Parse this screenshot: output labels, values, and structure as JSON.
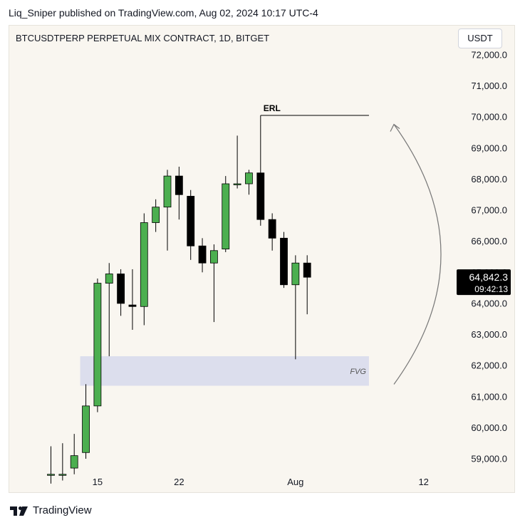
{
  "header": {
    "publish_line": "Liq_Sniper published on TradingView.com, Aug 02, 2024 10:17 UTC-4"
  },
  "symbol_line": "BTCUSDTPERP PERPETUAL MIX CONTRACT, 1D, BITGET",
  "currency_button": "USDT",
  "footer": {
    "brand": "TradingView"
  },
  "colors": {
    "up": "#4caf50",
    "down": "#000000",
    "zone": "#dcdeed",
    "background": "#f9f6f0"
  },
  "chart_data": {
    "type": "candlestick",
    "y_axis": {
      "ticks": [
        "72,000.0",
        "71,000.0",
        "70,000.0",
        "69,000.0",
        "68,000.0",
        "67,000.0",
        "66,000.0",
        "65,000.0",
        "64,000.0",
        "63,000.0",
        "62,000.0",
        "61,000.0",
        "60,000.0",
        "59,000.0"
      ],
      "range": [
        58700,
        72050
      ]
    },
    "x_axis": {
      "ticks": [
        {
          "label": "15",
          "date": "2024-07-15"
        },
        {
          "label": "22",
          "date": "2024-07-22"
        },
        {
          "label": "Aug",
          "date": "2024-08-01"
        },
        {
          "label": "12",
          "date": "2024-08-12"
        }
      ]
    },
    "candles": [
      {
        "date": "2024-07-11",
        "open": 58500,
        "high": 59400,
        "low": 58200,
        "close": 58500
      },
      {
        "date": "2024-07-12",
        "open": 58500,
        "high": 59500,
        "low": 58300,
        "close": 58500
      },
      {
        "date": "2024-07-13",
        "open": 58700,
        "high": 59800,
        "low": 58500,
        "close": 59100
      },
      {
        "date": "2024-07-14",
        "open": 59200,
        "high": 61400,
        "low": 59000,
        "close": 60700
      },
      {
        "date": "2024-07-15",
        "open": 60700,
        "high": 64800,
        "low": 60500,
        "close": 64650
      },
      {
        "date": "2024-07-16",
        "open": 64650,
        "high": 65300,
        "low": 62300,
        "close": 64950
      },
      {
        "date": "2024-07-17",
        "open": 64950,
        "high": 65100,
        "low": 63600,
        "close": 64000
      },
      {
        "date": "2024-07-18",
        "open": 63950,
        "high": 65100,
        "low": 63150,
        "close": 63900
      },
      {
        "date": "2024-07-19",
        "open": 63900,
        "high": 66900,
        "low": 63300,
        "close": 66600
      },
      {
        "date": "2024-07-20",
        "open": 66600,
        "high": 67350,
        "low": 66300,
        "close": 67100
      },
      {
        "date": "2024-07-21",
        "open": 67100,
        "high": 68300,
        "low": 65700,
        "close": 68100
      },
      {
        "date": "2024-07-22",
        "open": 68100,
        "high": 68400,
        "low": 66700,
        "close": 67500
      },
      {
        "date": "2024-07-23",
        "open": 67450,
        "high": 67650,
        "low": 65400,
        "close": 65850
      },
      {
        "date": "2024-07-24",
        "open": 65850,
        "high": 66100,
        "low": 65000,
        "close": 65300
      },
      {
        "date": "2024-07-25",
        "open": 65300,
        "high": 65900,
        "low": 63400,
        "close": 65700
      },
      {
        "date": "2024-07-26",
        "open": 65750,
        "high": 68100,
        "low": 65650,
        "close": 67850
      },
      {
        "date": "2024-07-27",
        "open": 67850,
        "high": 69400,
        "low": 67700,
        "close": 67850
      },
      {
        "date": "2024-07-28",
        "open": 67850,
        "high": 68300,
        "low": 67500,
        "close": 68200
      },
      {
        "date": "2024-07-29",
        "open": 68200,
        "high": 70050,
        "low": 66500,
        "close": 66700
      },
      {
        "date": "2024-07-30",
        "open": 66700,
        "high": 66900,
        "low": 65700,
        "close": 66100
      },
      {
        "date": "2024-07-31",
        "open": 66100,
        "high": 66300,
        "low": 64500,
        "close": 64600
      },
      {
        "date": "2024-08-01",
        "open": 64600,
        "high": 65550,
        "low": 62200,
        "close": 65300
      },
      {
        "date": "2024-08-02",
        "open": 65300,
        "high": 65550,
        "low": 63650,
        "close": 64842.3
      }
    ],
    "price_label": {
      "value": "64,842.3",
      "countdown": "09:42:13"
    },
    "annotations": [
      {
        "type": "level",
        "label": "ERL",
        "price": 70050,
        "from": "2024-07-29",
        "to": "2024-08-07"
      },
      {
        "type": "zone",
        "label": "FVG",
        "top": 62300,
        "bottom": 61350,
        "from": "2024-07-14",
        "to": "2024-08-07"
      },
      {
        "type": "curved-arrow",
        "from_price": 61900,
        "to_price": 69900,
        "direction": "up"
      }
    ]
  }
}
